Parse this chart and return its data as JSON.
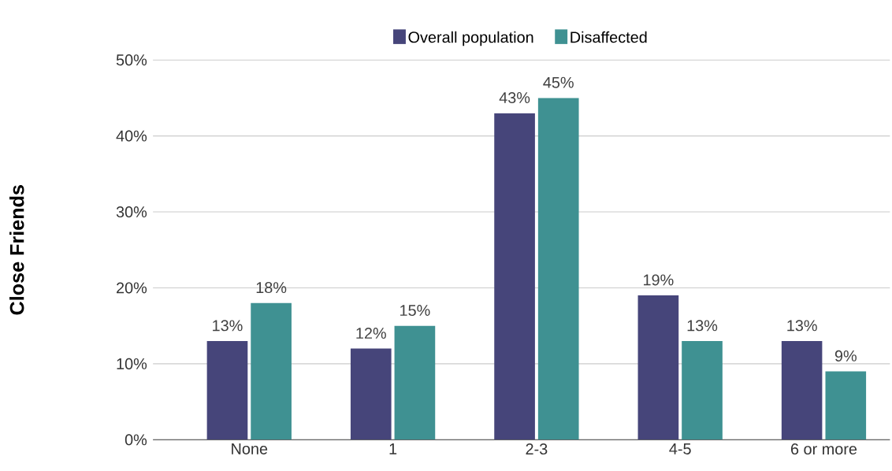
{
  "chart_data": {
    "type": "bar",
    "ylabel": "Close Friends",
    "categories": [
      "None",
      "1",
      "2-3",
      "4-5",
      "6 or more"
    ],
    "series": [
      {
        "name": "Overall population",
        "color": "#46457a",
        "values": [
          13,
          12,
          43,
          19,
          13
        ],
        "value_labels": [
          "13%",
          "12%",
          "43%",
          "19%",
          "13%"
        ]
      },
      {
        "name": "Disaffected",
        "color": "#3f9192",
        "values": [
          18,
          15,
          45,
          13,
          9
        ],
        "value_labels": [
          "18%",
          "15%",
          "45%",
          "13%",
          "9%"
        ]
      }
    ],
    "ylim": [
      0,
      50
    ],
    "yticks": [
      {
        "value": 0,
        "label": "0%"
      },
      {
        "value": 10,
        "label": "10%"
      },
      {
        "value": 20,
        "label": "20%"
      },
      {
        "value": 30,
        "label": "30%"
      },
      {
        "value": 40,
        "label": "40%"
      },
      {
        "value": 50,
        "label": "50%"
      }
    ],
    "grid": "y",
    "legend": "top"
  }
}
